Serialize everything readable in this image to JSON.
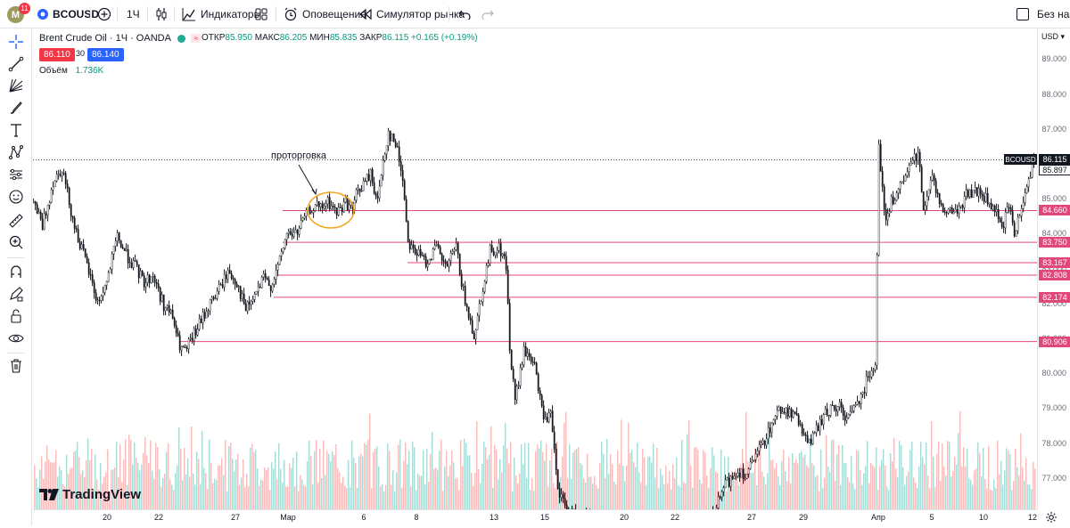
{
  "toolbar": {
    "avatar_letter": "M",
    "notification_count": "11",
    "symbol": "BCOUSD",
    "interval": "1Ч",
    "indicators_label": "Индикаторы",
    "alerts_label": "Оповещения",
    "replay_label": "Симулятор рынка",
    "right_label": "Без назв"
  },
  "legend": {
    "title": "Brent Crude Oil · 1Ч · OANDA",
    "open_label": "ОТКР",
    "open": "85.950",
    "high_label": "МАКС",
    "high": "86.205",
    "low_label": "МИН",
    "low": "85.835",
    "close_label": "ЗАКР",
    "close": "86.115",
    "change": "+0.165 (+0.19%)",
    "sell_price": "86.110",
    "spread": "30",
    "buy_price": "86.140",
    "volume_label": "Объём",
    "volume": "1.736K"
  },
  "annotation": "проторговка",
  "branding": "TradingView",
  "price_axis": {
    "currency": "USD",
    "labels": [
      "89.000",
      "88.000",
      "87.000",
      "86.000",
      "85.000",
      "84.000",
      "83.000",
      "82.000",
      "81.000",
      "80.000",
      "79.000",
      "78.000",
      "77.000"
    ],
    "symbol_tag": "BCOUSD",
    "last_price": "86.115",
    "countdown": "85.897"
  },
  "levels": [
    "84.660",
    "83.750",
    "83.167",
    "82.808",
    "82.174",
    "80.906"
  ],
  "time_axis": [
    "20",
    "22",
    "27",
    "Мар",
    "6",
    "8",
    "13",
    "15",
    "20",
    "22",
    "27",
    "29",
    "Апр",
    "5",
    "10",
    "12"
  ],
  "colors": {
    "level_line": "#e2477a",
    "sell": "#f23645",
    "buy": "#2962ff",
    "volume_up": "#a8dbd5",
    "volume_down": "#f7bcbc",
    "annotation_circle": "#f5a623"
  },
  "chart_data": {
    "type": "candlestick",
    "symbol": "BCOUSD",
    "y_range": [
      76.4,
      89.8
    ],
    "last_close": 86.115,
    "horizontal_levels": [
      84.66,
      83.75,
      83.167,
      82.808,
      82.174,
      80.906
    ],
    "path": [
      [
        0,
        84.9
      ],
      [
        10,
        84.2
      ],
      [
        22,
        85.5
      ],
      [
        32,
        85.9
      ],
      [
        45,
        84.3
      ],
      [
        62,
        82.9
      ],
      [
        72,
        82.0
      ],
      [
        82,
        82.6
      ],
      [
        94,
        83.9
      ],
      [
        104,
        83.4
      ],
      [
        115,
        83.0
      ],
      [
        124,
        82.6
      ],
      [
        134,
        82.8
      ],
      [
        145,
        82.0
      ],
      [
        156,
        81.6
      ],
      [
        163,
        80.8
      ],
      [
        170,
        80.6
      ],
      [
        180,
        81.1
      ],
      [
        190,
        81.6
      ],
      [
        198,
        82.0
      ],
      [
        208,
        82.4
      ],
      [
        218,
        82.9
      ],
      [
        228,
        82.6
      ],
      [
        238,
        81.8
      ],
      [
        248,
        82.2
      ],
      [
        258,
        82.7
      ],
      [
        266,
        82.5
      ],
      [
        275,
        83.1
      ],
      [
        284,
        84.0
      ],
      [
        295,
        84.0
      ],
      [
        305,
        84.5
      ],
      [
        315,
        84.8
      ],
      [
        322,
        84.7
      ],
      [
        330,
        84.9
      ],
      [
        340,
        84.6
      ],
      [
        350,
        84.9
      ],
      [
        358,
        84.7
      ],
      [
        363,
        85.2
      ],
      [
        370,
        85.4
      ],
      [
        378,
        85.7
      ],
      [
        386,
        84.9
      ],
      [
        392,
        86.1
      ],
      [
        398,
        86.9
      ],
      [
        407,
        86.5
      ],
      [
        414,
        85.6
      ],
      [
        420,
        83.8
      ],
      [
        428,
        83.5
      ],
      [
        440,
        83.2
      ],
      [
        452,
        83.6
      ],
      [
        462,
        83.0
      ],
      [
        474,
        83.6
      ],
      [
        484,
        82.0
      ],
      [
        494,
        81.1
      ],
      [
        505,
        82.6
      ],
      [
        512,
        83.5
      ],
      [
        522,
        83.6
      ],
      [
        530,
        83.1
      ],
      [
        534,
        80.7
      ],
      [
        540,
        79.2
      ],
      [
        550,
        80.6
      ],
      [
        560,
        80.4
      ],
      [
        568,
        79.3
      ],
      [
        574,
        78.6
      ],
      [
        580,
        78.8
      ],
      [
        588,
        76.6
      ],
      [
        600,
        76.0
      ],
      [
        640,
        75.8
      ],
      [
        680,
        75.8
      ],
      [
        720,
        75.8
      ],
      [
        760,
        75.8
      ],
      [
        776,
        76.8
      ],
      [
        790,
        77.2
      ],
      [
        800,
        77.1
      ],
      [
        812,
        77.7
      ],
      [
        822,
        78.2
      ],
      [
        832,
        78.8
      ],
      [
        840,
        79.0
      ],
      [
        852,
        78.8
      ],
      [
        862,
        78.4
      ],
      [
        872,
        78.0
      ],
      [
        882,
        78.6
      ],
      [
        894,
        79.0
      ],
      [
        904,
        79.0
      ],
      [
        914,
        78.7
      ],
      [
        924,
        79.2
      ],
      [
        932,
        79.6
      ],
      [
        940,
        80.2
      ],
      [
        944,
        80.3
      ],
      [
        948,
        86.6
      ],
      [
        955,
        84.3
      ],
      [
        962,
        84.9
      ],
      [
        970,
        85.2
      ],
      [
        978,
        85.6
      ],
      [
        986,
        86.1
      ],
      [
        992,
        86.3
      ],
      [
        998,
        84.8
      ],
      [
        1008,
        85.6
      ],
      [
        1018,
        84.8
      ],
      [
        1028,
        84.6
      ],
      [
        1038,
        84.7
      ],
      [
        1048,
        85.2
      ],
      [
        1058,
        85.2
      ],
      [
        1068,
        85.0
      ],
      [
        1078,
        84.6
      ],
      [
        1088,
        84.3
      ],
      [
        1094,
        84.8
      ],
      [
        1100,
        84.0
      ],
      [
        1108,
        84.8
      ],
      [
        1116,
        85.6
      ],
      [
        1122,
        86.1
      ]
    ]
  }
}
